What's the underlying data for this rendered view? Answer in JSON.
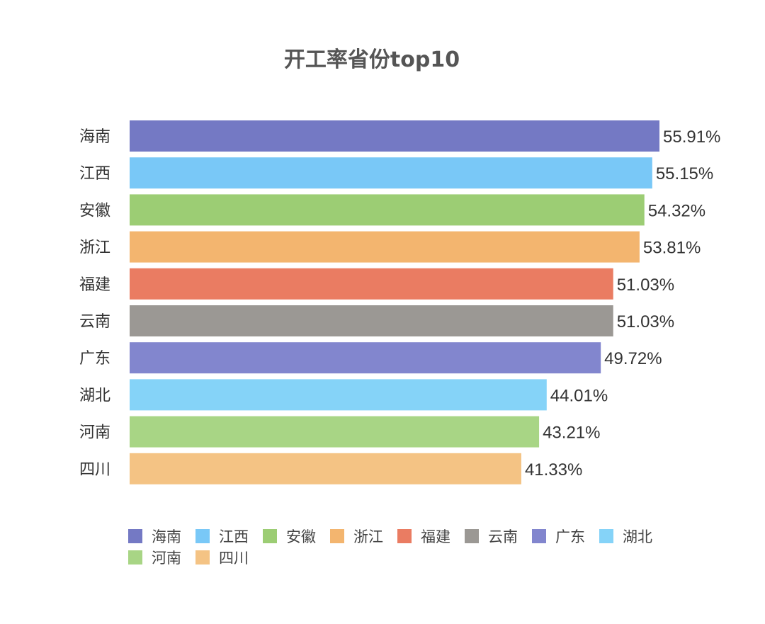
{
  "chart_data": {
    "type": "bar",
    "orientation": "horizontal",
    "title": "开工率省份top10",
    "categories": [
      "海南",
      "江西",
      "安徽",
      "浙江",
      "福建",
      "云南",
      "广东",
      "湖北",
      "河南",
      "四川"
    ],
    "values": [
      55.91,
      55.15,
      54.32,
      53.81,
      51.03,
      51.03,
      49.72,
      44.01,
      43.21,
      41.33
    ],
    "value_labels": [
      "55.91%",
      "55.15%",
      "54.32%",
      "53.81%",
      "51.03%",
      "51.03%",
      "49.72%",
      "44.01%",
      "43.21%",
      "41.33%"
    ],
    "colors": [
      "#7479c4",
      "#79c8f7",
      "#9ccd74",
      "#f3b56f",
      "#ea7c62",
      "#9b9894",
      "#8286ce",
      "#85d3f8",
      "#a8d585",
      "#f4c384"
    ],
    "xlim": [
      0,
      55.91
    ],
    "grid": false,
    "legend_position": "bottom-left"
  }
}
